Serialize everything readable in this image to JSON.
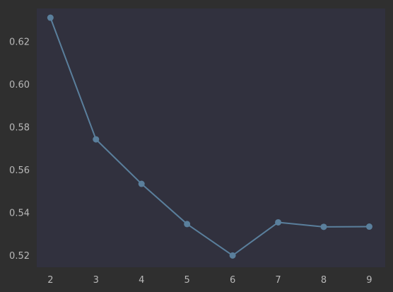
{
  "chart_data": {
    "type": "line",
    "title": "",
    "xlabel": "",
    "ylabel": "",
    "x": [
      2,
      3,
      4,
      5,
      6,
      7,
      8,
      9
    ],
    "series": [
      {
        "values": [
          0.6312,
          0.5743,
          0.5535,
          0.5347,
          0.52,
          0.5355,
          0.5334,
          0.5335
        ]
      }
    ],
    "xlim": [
      1.7,
      9.35
    ],
    "ylim": [
      0.5145,
      0.6355
    ],
    "x_ticks": [
      "2",
      "3",
      "4",
      "5",
      "6",
      "7",
      "8",
      "9"
    ],
    "y_ticks": [
      "0.52",
      "0.54",
      "0.56",
      "0.58",
      "0.60",
      "0.62"
    ],
    "grid": false,
    "legend": "none"
  },
  "colors": {
    "page_background": "#2f2f2f",
    "plot_background": "#31313e",
    "line": "#5a7f9c",
    "marker": "#5a7f9c",
    "tick_text": "#b8b8b8"
  }
}
